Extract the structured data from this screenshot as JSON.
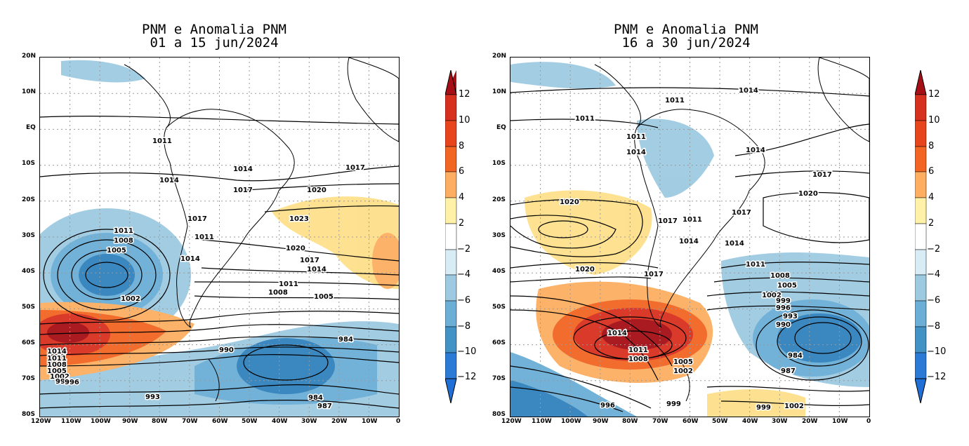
{
  "panels": [
    {
      "title_line1": "PNM e Anomalia PNM",
      "title_line2": "01 a 15 jun/2024",
      "contour_labels": [
        "1011",
        "1014",
        "1014",
        "1017",
        "1017",
        "1020",
        "1023",
        "1017",
        "1011",
        "1014",
        "1011",
        "1008",
        "1005",
        "1002",
        "1020",
        "1017",
        "1014",
        "1011",
        "1008",
        "1005",
        "1014",
        "1011",
        "1008",
        "1005",
        "1002",
        "999",
        "996",
        "990",
        "984",
        "993",
        "984",
        "987"
      ]
    },
    {
      "title_line1": "PNM e Anomalia PNM",
      "title_line2": "16 a 30 jun/2024",
      "contour_labels": [
        "1014",
        "1011",
        "1011",
        "1011",
        "1014",
        "1014",
        "1017",
        "1020",
        "1020",
        "1017",
        "1017",
        "1011",
        "1014",
        "1014",
        "1020",
        "1017",
        "1011",
        "1008",
        "1005",
        "1002",
        "999",
        "996",
        "993",
        "990",
        "984",
        "987",
        "1014",
        "1011",
        "1008",
        "1005",
        "1002",
        "996",
        "999",
        "999",
        "1002"
      ]
    }
  ],
  "lat_ticks": [
    "20N",
    "10N",
    "EQ",
    "10S",
    "20S",
    "30S",
    "40S",
    "50S",
    "60S",
    "70S",
    "80S"
  ],
  "lon_ticks": [
    "120W",
    "110W",
    "100W",
    "90W",
    "80W",
    "70W",
    "60W",
    "50W",
    "40W",
    "30W",
    "20W",
    "10W",
    "0"
  ],
  "colorbar": {
    "levels": [
      "12",
      "10",
      "8",
      "6",
      "4",
      "2",
      "−2",
      "−4",
      "−6",
      "−8",
      "−10",
      "−12"
    ],
    "colors": [
      "#a50f15",
      "#d7301f",
      "#f26522",
      "#fdae61",
      "#fee08b",
      "#fff7bc",
      "#ffffff",
      "#deebf7",
      "#9ecae1",
      "#6baed6",
      "#3182bd",
      "#2b6fd6",
      "#1f5fcf"
    ]
  }
}
